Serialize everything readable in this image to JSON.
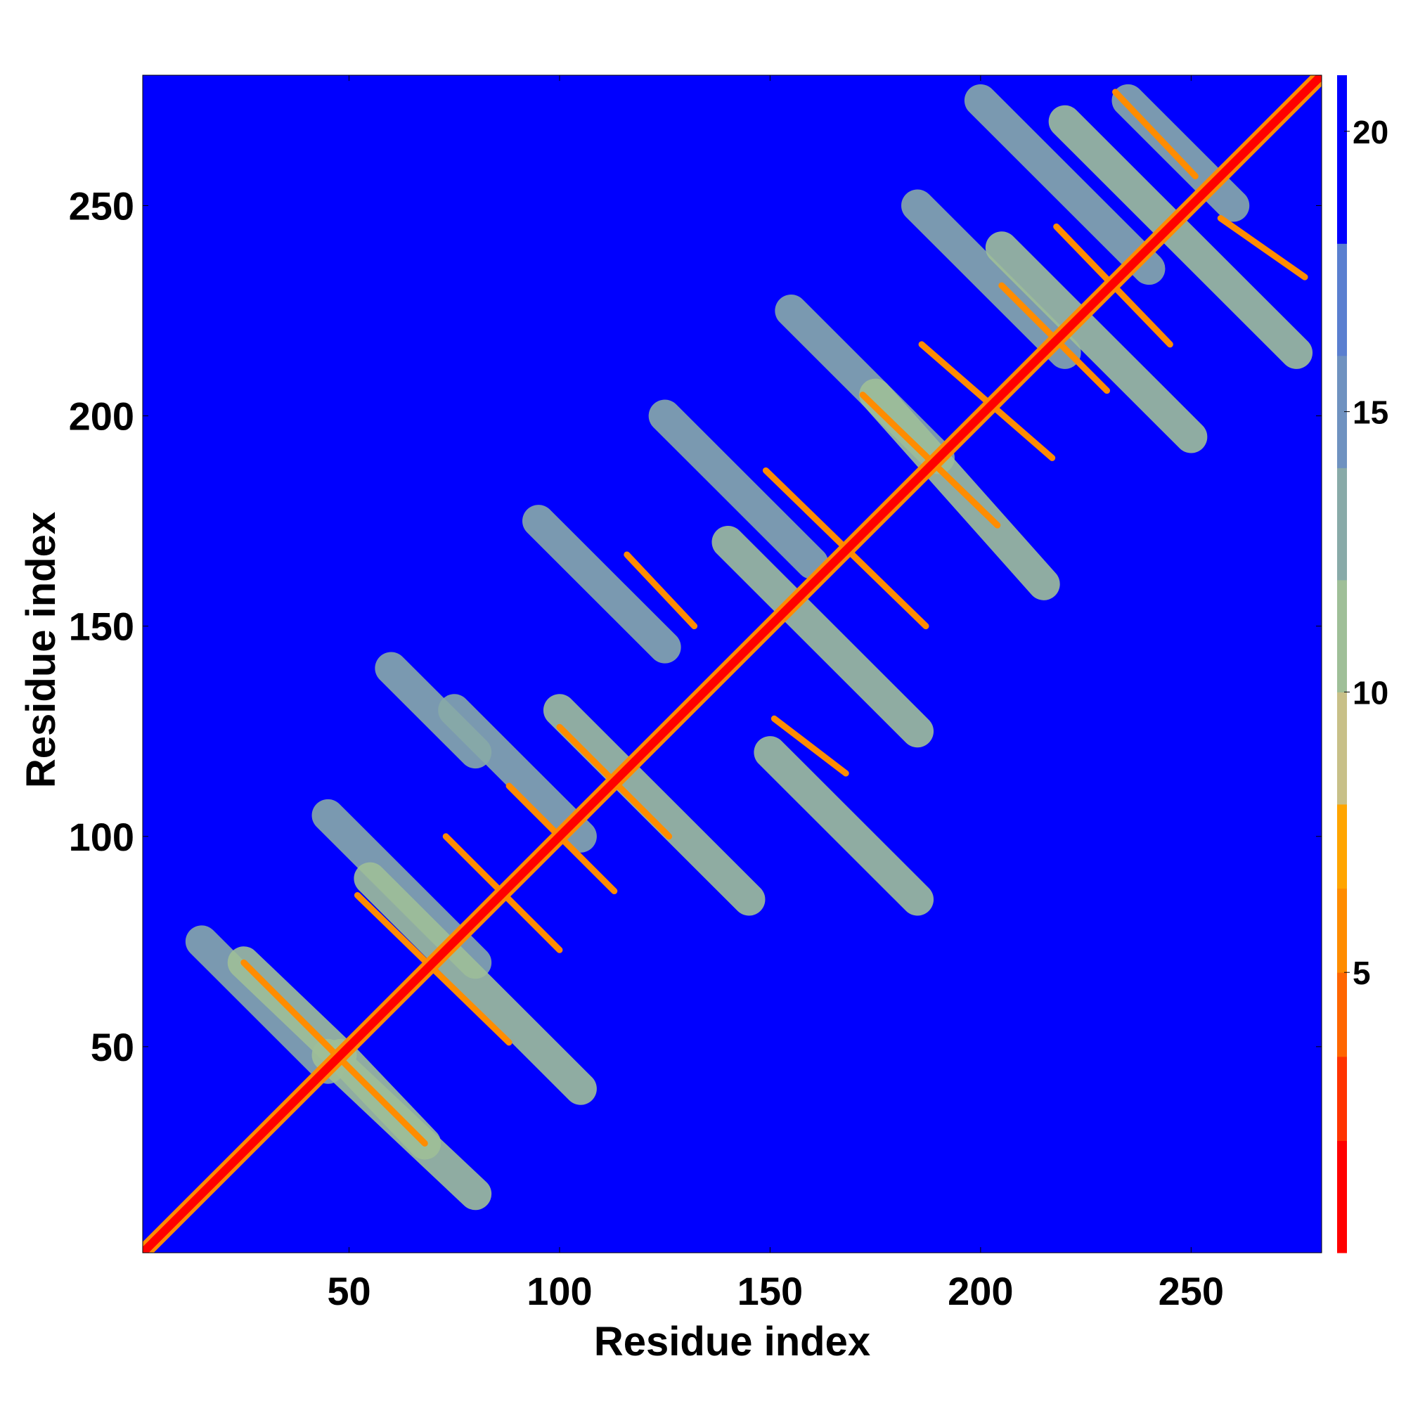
{
  "chart_data": {
    "type": "heatmap",
    "title": "",
    "xlabel": "Residue index",
    "ylabel": "Residue index",
    "xlim": [
      1,
      281
    ],
    "ylim": [
      1,
      281
    ],
    "x_ticks": [
      50,
      100,
      150,
      200,
      250
    ],
    "y_ticks": [
      50,
      100,
      150,
      200,
      250
    ],
    "colorbar": {
      "ticks": [
        5,
        10,
        15,
        20
      ],
      "range": [
        0,
        21
      ],
      "colors": [
        "#ff0000",
        "#ff3300",
        "#ff6600",
        "#ff8c00",
        "#ffa500",
        "#c8c088",
        "#9fbf98",
        "#88aaa8",
        "#6f92c0",
        "#5a7fd0",
        "#0000ff"
      ],
      "boundaries": [
        0,
        2,
        3.5,
        5,
        6.5,
        8,
        10,
        12,
        14,
        16,
        18,
        21
      ]
    },
    "background_value": 21,
    "diagonal_value": 1.5,
    "segments": [
      {
        "from": [
          25,
          70
        ],
        "to": [
          68,
          27
        ],
        "value": 6
      },
      {
        "from": [
          48,
          48
        ],
        "to": [
          68,
          27
        ],
        "value": 11
      },
      {
        "from": [
          25,
          70
        ],
        "to": [
          48,
          48
        ],
        "value": 11
      },
      {
        "from": [
          52,
          86
        ],
        "to": [
          88,
          51
        ],
        "value": 6
      },
      {
        "from": [
          73,
          100
        ],
        "to": [
          100,
          73
        ],
        "value": 6
      },
      {
        "from": [
          88,
          112
        ],
        "to": [
          113,
          87
        ],
        "value": 6
      },
      {
        "from": [
          100,
          126
        ],
        "to": [
          126,
          100
        ],
        "value": 6
      },
      {
        "from": [
          116,
          167
        ],
        "to": [
          132,
          150
        ],
        "value": 6
      },
      {
        "from": [
          149,
          187
        ],
        "to": [
          187,
          150
        ],
        "value": 6
      },
      {
        "from": [
          172,
          205
        ],
        "to": [
          204,
          174
        ],
        "value": 6
      },
      {
        "from": [
          186,
          217
        ],
        "to": [
          217,
          190
        ],
        "value": 6
      },
      {
        "from": [
          205,
          231
        ],
        "to": [
          230,
          206
        ],
        "value": 6
      },
      {
        "from": [
          218,
          245
        ],
        "to": [
          245,
          217
        ],
        "value": 6
      },
      {
        "from": [
          232,
          277
        ],
        "to": [
          251,
          257
        ],
        "value": 6
      },
      {
        "from": [
          257,
          247
        ],
        "to": [
          277,
          233
        ],
        "value": 6
      },
      {
        "from": [
          151,
          128
        ],
        "to": [
          168,
          115
        ],
        "value": 6
      },
      {
        "from": [
          45,
          48
        ],
        "to": [
          80,
          15
        ],
        "value": 10
      },
      {
        "from": [
          55,
          90
        ],
        "to": [
          105,
          40
        ],
        "value": 11
      },
      {
        "from": [
          100,
          130
        ],
        "to": [
          145,
          85
        ],
        "value": 11
      },
      {
        "from": [
          140,
          170
        ],
        "to": [
          185,
          125
        ],
        "value": 11
      },
      {
        "from": [
          175,
          205
        ],
        "to": [
          215,
          160
        ],
        "value": 11
      },
      {
        "from": [
          205,
          240
        ],
        "to": [
          250,
          195
        ],
        "value": 11
      },
      {
        "from": [
          220,
          270
        ],
        "to": [
          275,
          215
        ],
        "value": 11
      },
      {
        "from": [
          15,
          75
        ],
        "to": [
          45,
          45
        ],
        "value": 12
      },
      {
        "from": [
          45,
          105
        ],
        "to": [
          80,
          70
        ],
        "value": 12
      },
      {
        "from": [
          75,
          130
        ],
        "to": [
          105,
          100
        ],
        "value": 12
      },
      {
        "from": [
          95,
          175
        ],
        "to": [
          125,
          145
        ],
        "value": 12
      },
      {
        "from": [
          125,
          200
        ],
        "to": [
          160,
          165
        ],
        "value": 12
      },
      {
        "from": [
          155,
          225
        ],
        "to": [
          190,
          190
        ],
        "value": 12
      },
      {
        "from": [
          185,
          250
        ],
        "to": [
          220,
          215
        ],
        "value": 12
      },
      {
        "from": [
          200,
          275
        ],
        "to": [
          240,
          235
        ],
        "value": 12
      },
      {
        "from": [
          235,
          275
        ],
        "to": [
          260,
          250
        ],
        "value": 12
      },
      {
        "from": [
          150,
          120
        ],
        "to": [
          185,
          85
        ],
        "value": 11
      },
      {
        "from": [
          60,
          140
        ],
        "to": [
          80,
          120
        ],
        "value": 12
      },
      {
        "from": [
          50,
          200
        ],
        "to": [
          50,
          200
        ],
        "value": 21
      }
    ]
  }
}
